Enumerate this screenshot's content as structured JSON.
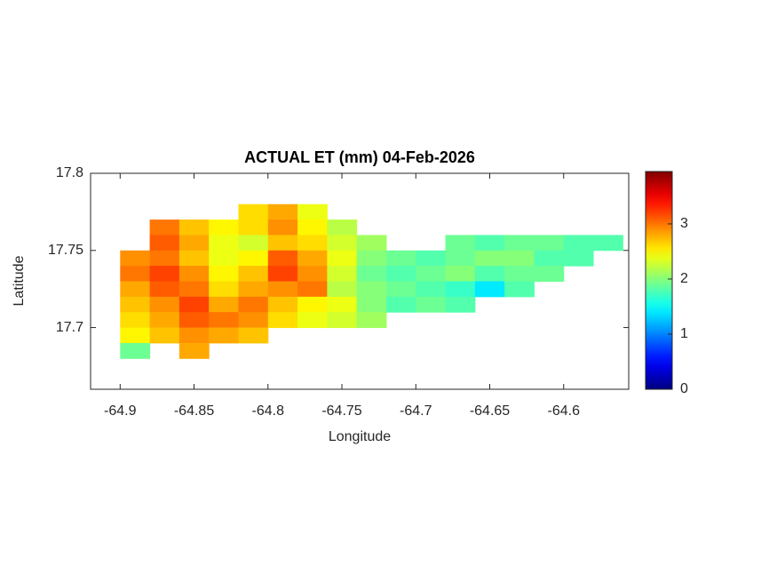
{
  "chart_data": {
    "type": "heatmap",
    "title": "ACTUAL ET (mm) 04-Feb-2026",
    "x_label": "Longitude",
    "y_label": "Latitude",
    "colormap": "jet",
    "x": [
      -64.89,
      -64.87,
      -64.85,
      -64.83,
      -64.81,
      -64.79,
      -64.77,
      -64.75,
      -64.73,
      -64.71,
      -64.69,
      -64.67,
      -64.65,
      -64.63,
      -64.61,
      -64.59,
      -64.57
    ],
    "y": [
      17.775,
      17.765,
      17.755,
      17.745,
      17.735,
      17.725,
      17.715,
      17.705,
      17.695,
      17.685
    ],
    "z": [
      [
        null,
        null,
        null,
        null,
        2.6,
        2.8,
        2.4,
        null,
        null,
        null,
        null,
        null,
        null,
        null,
        null,
        null,
        null
      ],
      [
        null,
        3.0,
        2.7,
        2.5,
        2.6,
        2.9,
        2.5,
        2.2,
        null,
        null,
        null,
        null,
        null,
        null,
        null,
        null,
        null
      ],
      [
        null,
        3.1,
        2.8,
        2.4,
        2.3,
        2.7,
        2.6,
        2.3,
        2.1,
        null,
        null,
        1.9,
        1.8,
        1.9,
        1.9,
        1.8,
        1.8
      ],
      [
        2.9,
        3.0,
        2.7,
        2.4,
        2.5,
        3.1,
        2.8,
        2.4,
        2.0,
        1.9,
        1.8,
        1.9,
        2.0,
        2.0,
        1.8,
        1.8,
        null
      ],
      [
        3.0,
        3.2,
        2.9,
        2.5,
        2.7,
        3.2,
        2.9,
        2.3,
        1.9,
        1.8,
        1.9,
        2.0,
        1.8,
        1.9,
        1.9,
        null,
        null
      ],
      [
        2.8,
        3.1,
        3.0,
        2.6,
        2.8,
        2.9,
        3.0,
        2.2,
        2.0,
        1.9,
        1.8,
        1.7,
        1.4,
        1.8,
        null,
        null,
        null
      ],
      [
        2.7,
        2.9,
        3.2,
        2.8,
        3.0,
        2.7,
        2.5,
        2.4,
        2.0,
        1.8,
        1.9,
        1.8,
        null,
        null,
        null,
        null,
        null
      ],
      [
        2.6,
        2.8,
        3.1,
        3.0,
        2.9,
        2.6,
        2.4,
        2.3,
        2.1,
        null,
        null,
        null,
        null,
        null,
        null,
        null,
        null
      ],
      [
        2.5,
        2.7,
        2.9,
        2.8,
        2.7,
        null,
        null,
        null,
        null,
        null,
        null,
        null,
        null,
        null,
        null,
        null,
        null
      ],
      [
        1.9,
        null,
        2.8,
        null,
        null,
        null,
        null,
        null,
        null,
        null,
        null,
        null,
        null,
        null,
        null,
        null,
        null
      ]
    ],
    "xlim": [
      -64.92,
      -64.556
    ],
    "xticks": [
      -64.9,
      -64.85,
      -64.8,
      -64.75,
      -64.7,
      -64.65,
      -64.6
    ],
    "ylim": [
      17.66,
      17.8
    ],
    "yticks": [
      17.7,
      17.75,
      17.8
    ],
    "clim": [
      0,
      3.95
    ],
    "cticks": [
      0,
      1,
      2,
      3
    ]
  }
}
